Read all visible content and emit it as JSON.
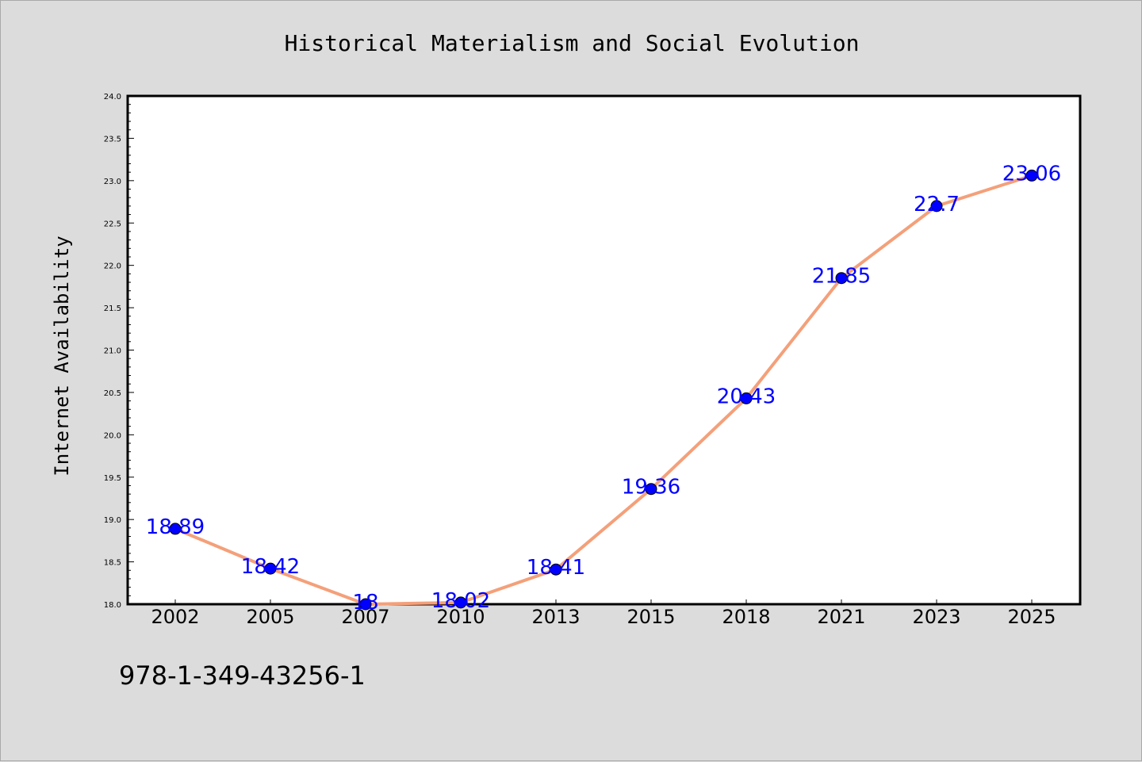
{
  "chart_data": {
    "type": "line",
    "title": "Historical Materialism and Social Evolution",
    "xlabel": "",
    "ylabel": "Internet Availability",
    "categories": [
      "2002",
      "2005",
      "2007",
      "2010",
      "2013",
      "2015",
      "2018",
      "2021",
      "2023",
      "2025"
    ],
    "series": [
      {
        "values": [
          18.89,
          18.42,
          18,
          18.02,
          18.41,
          19.36,
          20.43,
          21.85,
          22.7,
          23.06
        ],
        "labels": [
          "18.89",
          "18.42",
          "18",
          "18.02",
          "18.41",
          "19.36",
          "20.43",
          "21.85",
          "22.7",
          "23.06"
        ],
        "line_color": "#f4a07a",
        "marker_color": "#0000ff",
        "label_color": "#0000ff"
      }
    ],
    "ylim": [
      18.0,
      24.0
    ],
    "yticks": [
      "18.0",
      "18.5",
      "19.0",
      "19.5",
      "20.0",
      "20.5",
      "21.0",
      "21.5",
      "22.0",
      "22.5",
      "23.0",
      "23.5",
      "24.0"
    ],
    "grid": false,
    "legend": "none"
  },
  "footer": {
    "isbn": "978-1-349-43256-1"
  },
  "colors": {
    "background": "#dcdcdc",
    "plot_background": "#ffffff",
    "axes": "#000000"
  }
}
